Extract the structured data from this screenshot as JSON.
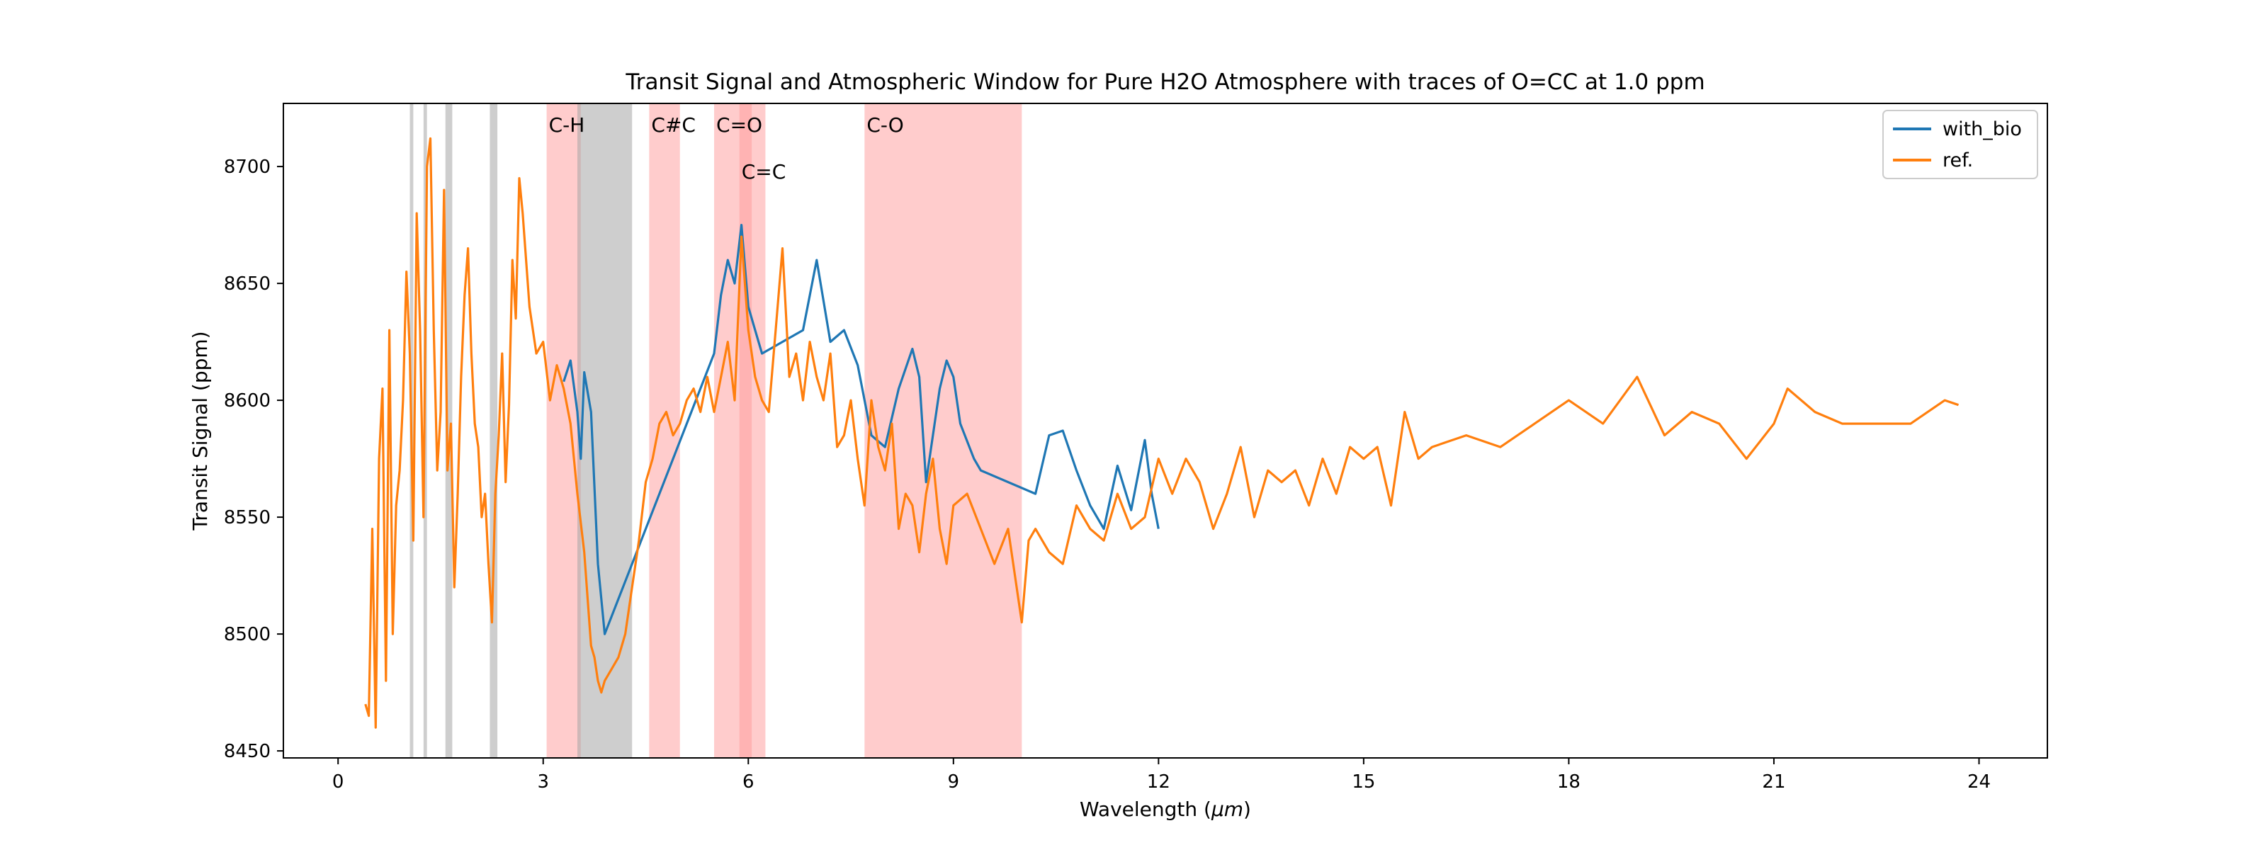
{
  "chart_data": {
    "type": "line",
    "title": "Transit Signal and Atmospheric Window for Pure H2O Atmosphere with traces of O=CC at 1.0 ppm",
    "xlabel_prefix": "Wavelength (",
    "xlabel_unit": "μm",
    "xlabel_suffix": ")",
    "ylabel": "Transit Signal (ppm)",
    "xlim": [
      -0.8,
      25.0
    ],
    "ylim": [
      8447,
      8727
    ],
    "xticks": [
      0,
      3,
      6,
      9,
      12,
      15,
      18,
      21,
      24
    ],
    "yticks": [
      8450,
      8500,
      8550,
      8600,
      8650,
      8700
    ],
    "grid": false,
    "legend_position": "top-right",
    "colors": {
      "with_bio": "#1f77b4",
      "ref": "#ff7f0e",
      "functional_band": "#ff9999",
      "window_band": "#a6a6a6"
    },
    "functional_bands": [
      {
        "label": "C-H",
        "x0": 3.05,
        "x1": 3.55,
        "label_x": 3.05,
        "label_row": 1
      },
      {
        "label": "C#C",
        "x0": 4.55,
        "x1": 5.0,
        "label_x": 4.55,
        "label_row": 1
      },
      {
        "label": "C=O",
        "x0": 5.5,
        "x1": 6.05,
        "label_x": 5.5,
        "label_row": 1
      },
      {
        "label": "C=C",
        "x0": 5.87,
        "x1": 6.25,
        "label_x": 5.87,
        "label_row": 2
      },
      {
        "label": "C-O",
        "x0": 7.7,
        "x1": 10.0,
        "label_x": 7.7,
        "label_row": 1
      }
    ],
    "window_bands": [
      {
        "x0": 1.05,
        "x1": 1.1
      },
      {
        "x0": 1.25,
        "x1": 1.3
      },
      {
        "x0": 1.57,
        "x1": 1.67
      },
      {
        "x0": 2.22,
        "x1": 2.33
      },
      {
        "x0": 3.5,
        "x1": 4.3
      }
    ],
    "series": [
      {
        "name": "with_bio",
        "x": [
          3.3,
          3.4,
          3.5,
          3.55,
          3.6,
          3.7,
          3.8,
          3.9,
          5.5,
          5.6,
          5.7,
          5.8,
          5.9,
          6.0,
          6.1,
          6.2,
          6.5,
          6.8,
          7.0,
          7.2,
          7.4,
          7.6,
          7.8,
          8.0,
          8.2,
          8.4,
          8.5,
          8.6,
          8.8,
          8.9,
          9.0,
          9.1,
          9.3,
          9.4,
          10.2,
          10.4,
          10.6,
          10.8,
          11.0,
          11.2,
          11.4,
          11.6,
          11.8,
          11.9,
          12.0
        ],
        "y": [
          8608,
          8617,
          8595,
          8575,
          8612,
          8595,
          8530,
          8500,
          8620,
          8645,
          8660,
          8650,
          8675,
          8640,
          8630,
          8620,
          8625,
          8630,
          8660,
          8625,
          8630,
          8615,
          8585,
          8580,
          8605,
          8622,
          8610,
          8565,
          8605,
          8617,
          8610,
          8590,
          8575,
          8570,
          8560,
          8585,
          8587,
          8570,
          8555,
          8545,
          8572,
          8553,
          8583,
          8560,
          8545
        ]
      },
      {
        "name": "ref.",
        "x": [
          0.4,
          0.45,
          0.5,
          0.55,
          0.6,
          0.65,
          0.7,
          0.75,
          0.8,
          0.85,
          0.9,
          0.95,
          1.0,
          1.05,
          1.1,
          1.15,
          1.2,
          1.25,
          1.3,
          1.35,
          1.4,
          1.45,
          1.5,
          1.55,
          1.6,
          1.65,
          1.7,
          1.75,
          1.8,
          1.85,
          1.9,
          1.95,
          2.0,
          2.05,
          2.1,
          2.15,
          2.2,
          2.25,
          2.3,
          2.35,
          2.4,
          2.45,
          2.5,
          2.55,
          2.6,
          2.65,
          2.7,
          2.8,
          2.9,
          3.0,
          3.1,
          3.2,
          3.3,
          3.4,
          3.5,
          3.6,
          3.7,
          3.75,
          3.8,
          3.85,
          3.9,
          4.0,
          4.1,
          4.2,
          4.3,
          4.4,
          4.5,
          4.6,
          4.7,
          4.8,
          4.9,
          5.0,
          5.1,
          5.2,
          5.3,
          5.4,
          5.5,
          5.6,
          5.7,
          5.8,
          5.9,
          6.0,
          6.1,
          6.2,
          6.3,
          6.4,
          6.5,
          6.6,
          6.7,
          6.8,
          6.9,
          7.0,
          7.1,
          7.2,
          7.3,
          7.4,
          7.5,
          7.6,
          7.7,
          7.8,
          7.9,
          8.0,
          8.1,
          8.2,
          8.3,
          8.4,
          8.5,
          8.6,
          8.7,
          8.8,
          8.9,
          9.0,
          9.2,
          9.4,
          9.6,
          9.8,
          10.0,
          10.1,
          10.2,
          10.4,
          10.6,
          10.8,
          11.0,
          11.2,
          11.4,
          11.6,
          11.8,
          12.0,
          12.2,
          12.4,
          12.6,
          12.8,
          13.0,
          13.2,
          13.4,
          13.6,
          13.8,
          14.0,
          14.2,
          14.4,
          14.6,
          14.8,
          15.0,
          15.2,
          15.4,
          15.6,
          15.8,
          16.0,
          16.5,
          17.0,
          17.5,
          18.0,
          18.5,
          19.0,
          19.4,
          19.8,
          20.2,
          20.6,
          21.0,
          21.2,
          21.6,
          22.0,
          22.5,
          23.0,
          23.5,
          23.7
        ],
        "y": [
          8470,
          8465,
          8545,
          8460,
          8575,
          8605,
          8480,
          8630,
          8500,
          8555,
          8570,
          8600,
          8655,
          8620,
          8540,
          8680,
          8630,
          8550,
          8700,
          8712,
          8630,
          8570,
          8595,
          8690,
          8570,
          8590,
          8520,
          8560,
          8610,
          8645,
          8665,
          8620,
          8590,
          8580,
          8550,
          8560,
          8530,
          8505,
          8560,
          8585,
          8620,
          8565,
          8598,
          8660,
          8635,
          8695,
          8680,
          8640,
          8620,
          8625,
          8600,
          8615,
          8605,
          8590,
          8560,
          8535,
          8495,
          8490,
          8480,
          8475,
          8480,
          8485,
          8490,
          8500,
          8520,
          8540,
          8565,
          8575,
          8590,
          8595,
          8585,
          8590,
          8600,
          8605,
          8595,
          8610,
          8595,
          8610,
          8625,
          8600,
          8670,
          8630,
          8610,
          8600,
          8595,
          8630,
          8665,
          8610,
          8620,
          8600,
          8625,
          8610,
          8600,
          8620,
          8580,
          8585,
          8600,
          8575,
          8555,
          8600,
          8580,
          8570,
          8590,
          8545,
          8560,
          8555,
          8535,
          8560,
          8575,
          8545,
          8530,
          8555,
          8560,
          8545,
          8530,
          8545,
          8505,
          8540,
          8545,
          8535,
          8530,
          8555,
          8545,
          8540,
          8560,
          8545,
          8550,
          8575,
          8560,
          8575,
          8565,
          8545,
          8560,
          8580,
          8550,
          8570,
          8565,
          8570,
          8555,
          8575,
          8560,
          8580,
          8575,
          8580,
          8555,
          8595,
          8575,
          8580,
          8585,
          8580,
          8590,
          8600,
          8590,
          8610,
          8585,
          8595,
          8590,
          8575,
          8590,
          8605,
          8595,
          8590,
          8590,
          8590,
          8600,
          8598
        ]
      }
    ]
  }
}
